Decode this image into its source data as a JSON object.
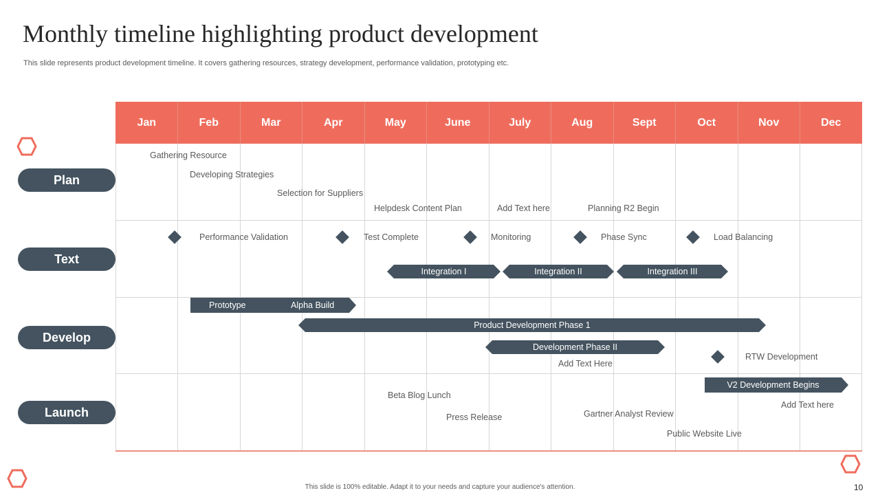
{
  "title": "Monthly timeline highlighting product development",
  "subtitle": "This slide represents product development timeline. It covers gathering resources, strategy development, performance validation, prototyping etc.",
  "months": [
    "Jan",
    "Feb",
    "Mar",
    "Apr",
    "May",
    "June",
    "July",
    "Aug",
    "Sept",
    "Oct",
    "Nov",
    "Dec"
  ],
  "rows": [
    "Plan",
    "Text",
    "Develop",
    "Launch"
  ],
  "plan": {
    "items": [
      "Gathering Resource",
      "Developing  Strategies",
      "Selection for Suppliers",
      "Helpdesk Content Plan",
      "Add Text here",
      "Planning R2 Begin"
    ]
  },
  "text_row": {
    "milestones": [
      "Performance  Validation",
      "Test Complete",
      "Monitoring",
      "Phase Sync",
      "Load Balancing"
    ],
    "bars": [
      "Integration  I",
      "Integration  II",
      "Integration  III"
    ]
  },
  "develop": {
    "prototype": "Prototype",
    "alpha": "Alpha Build",
    "phase1": "Product Development  Phase 1",
    "phase2": "Development  Phase II",
    "add_text": "Add Text Here",
    "rtw": "RTW Development"
  },
  "launch": {
    "v2": "V2 Development  Begins",
    "add_text": "Add Text here",
    "beta": "Beta Blog Lunch",
    "press": "Press Release",
    "gartner": "Gartner  Analyst Review",
    "website": "Public Website Live"
  },
  "footer": "This slide is 100% editable.  Adapt it to your needs and capture your audience's attention.",
  "page_number": "10",
  "colors": {
    "accent": "#ef6c5c",
    "slate": "#44535f",
    "grid": "#d6d6d6"
  }
}
